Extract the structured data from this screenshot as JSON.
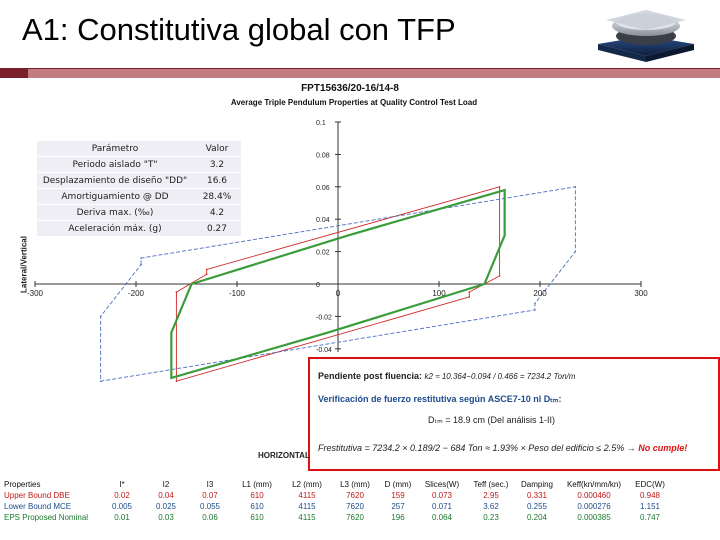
{
  "slide": {
    "title": "A1: Constitutiva global con TFP"
  },
  "chart_data": {
    "type": "line",
    "title": "FPT15636/20-16/14-8",
    "subtitle": "Average Triple Pendulum Properties at Quality Control Test Load",
    "ylabel": "Lateral/Vertical",
    "xlabel": "HORIZONTAL",
    "xlim": [
      -300,
      300
    ],
    "ylim": [
      -0.1,
      0.1
    ],
    "x_ticks": [
      "-300",
      "-200",
      "-100",
      "0",
      "100",
      "200",
      "300"
    ],
    "x_tick_values": [
      -300,
      -200,
      -100,
      0,
      100,
      200,
      300
    ],
    "y_ticks": [
      "0.1",
      "0.08",
      "0.06",
      "0.04",
      "0.02",
      "0",
      "-0.02",
      "-0.04"
    ],
    "y_tick_values": [
      0.1,
      0.08,
      0.06,
      0.04,
      0.02,
      0,
      -0.02,
      -0.04
    ],
    "series": [
      {
        "name": "Upper Bound DBE",
        "color": "#d02a2a",
        "points": [
          [
            -130,
            0.006
          ],
          [
            -130,
            0.009
          ],
          [
            160,
            0.06
          ],
          [
            160,
            0.005
          ],
          [
            130,
            -0.005
          ],
          [
            130,
            -0.008
          ],
          [
            -160,
            -0.06
          ],
          [
            -160,
            -0.005
          ],
          [
            -130,
            0.006
          ]
        ]
      },
      {
        "name": "Lower Bound MCE",
        "color": "#4a6fc0",
        "points": [
          [
            -195,
            0.012
          ],
          [
            -195,
            0.016
          ],
          [
            235,
            0.06
          ],
          [
            235,
            0.02
          ],
          [
            195,
            -0.012
          ],
          [
            195,
            -0.016
          ],
          [
            -235,
            -0.06
          ],
          [
            -235,
            -0.02
          ],
          [
            -195,
            0.012
          ]
        ]
      },
      {
        "name": "EPS Proposed Nominal",
        "color": "#3b9c3b",
        "points": [
          [
            -145,
            0.0
          ],
          [
            10,
            0.03
          ],
          [
            165,
            0.058
          ],
          [
            165,
            0.03
          ],
          [
            145,
            0.0
          ],
          [
            -10,
            -0.03
          ],
          [
            -165,
            -0.058
          ],
          [
            -165,
            -0.03
          ],
          [
            -145,
            0.0
          ]
        ]
      }
    ]
  },
  "table": {
    "headers": [
      "Parámetro",
      "Valor"
    ],
    "rows": [
      [
        "Periodo aislado \"T\"",
        "3.2"
      ],
      [
        "Desplazamiento de diseño \"DD\"",
        "16.6"
      ],
      [
        "Amortiguamiento @ DD",
        "28.4%"
      ],
      [
        "Deriva max. (‰)",
        "4.2"
      ],
      [
        "Aceleración máx. (g)",
        "0.27"
      ]
    ]
  },
  "callout": {
    "line1_label": "Pendiente post fluencia:",
    "line1_formula": "k2 ≈ 10.364−0.094 / 0.466 = 7234.2 Ton/m",
    "line2": "Verificación de fuerzo restitutiva según ASCE7-10 nl Dₜₘ:",
    "line3": "Dₜₘ = 18.9 cm (Del análisis 1-II)",
    "line4_formula": "Frestitutiva = 7234.2 × 0.189/2 − 684 Ton ≈ 1.93% × Peso del edificio ≤ 2.5% →",
    "line4_result": "No cumple!"
  },
  "properties": {
    "headers": [
      "Properties",
      "I*",
      "I2",
      "I3",
      "L1 (mm)",
      "L2 (mm)",
      "L3 (mm)",
      "D (mm)",
      "Slices(W)",
      "Teff (sec.)",
      "Damping",
      "Keff(kn/mm/kn)",
      "EDC(W)"
    ],
    "rows": [
      [
        "Upper Bound DBE",
        "0.02",
        "0.04",
        "0.07",
        "610",
        "4115",
        "7620",
        "159",
        "0.073",
        "2.95",
        "0.331",
        "0.000460",
        "0.948"
      ],
      [
        "Lower Bound MCE",
        "0.005",
        "0.025",
        "0.055",
        "610",
        "4115",
        "7620",
        "257",
        "0.071",
        "3.62",
        "0.255",
        "0.000276",
        "1.151"
      ],
      [
        "EPS Proposed Nominal",
        "0.01",
        "0.03",
        "0.06",
        "610",
        "4115",
        "7620",
        "196",
        "0.064",
        "0.23",
        "0.204",
        "0.000385",
        "0.747"
      ]
    ]
  }
}
